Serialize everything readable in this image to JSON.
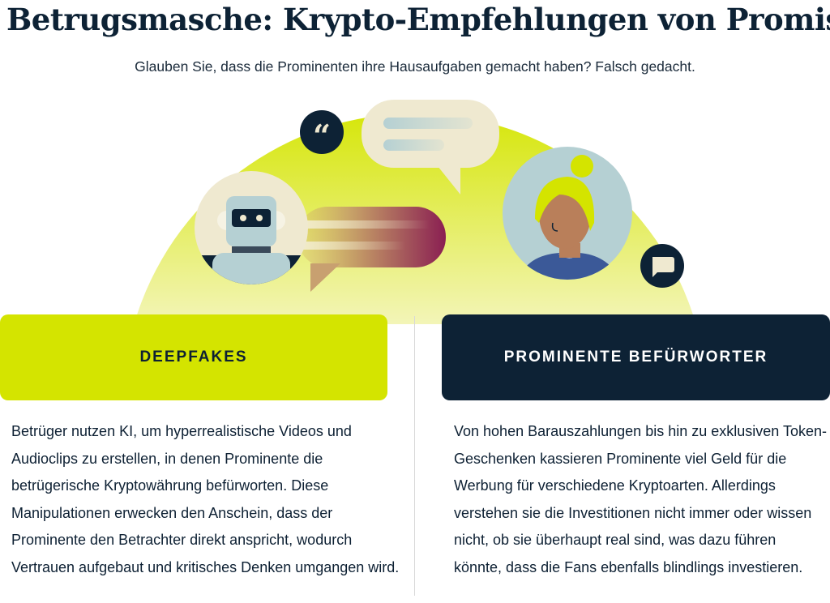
{
  "header": {
    "title": "Betrugsmasche: Krypto-Empfehlungen von Promis",
    "subtitle": "Glauben Sie, dass die Prominenten ihre Hausaufgaben gemacht haben? Falsch gedacht."
  },
  "colors": {
    "lime": "#d4e400",
    "navy": "#0d2235",
    "cream": "#efe9d0",
    "slate": "#b5d0d3",
    "berry": "#8a1f52"
  },
  "icons": [
    "quote-icon",
    "chat-bubble-icon",
    "robot-icon",
    "woman-icon"
  ],
  "cards": [
    {
      "label": "DEEPFAKES",
      "text": "Betrüger nutzen KI, um hyperrealistische Videos und Audioclips zu erstellen, in denen Prominente die betrügerische Kryptowährung befürworten. Diese Manipulationen erwecken den Anschein, dass der Prominente den Betrachter direkt anspricht, wodurch Vertrauen aufgebaut und kritisches Denken umgangen wird."
    },
    {
      "label": "PROMINENTE BEFÜRWORTER",
      "text": "Von hohen Barauszahlungen bis hin zu exklusiven Token-Geschenken kassieren Prominente viel Geld für die Werbung für verschiedene Kryptoarten. Allerdings verstehen sie die Investitionen nicht immer oder wissen nicht, ob sie überhaupt real sind, was dazu führen könnte, dass die Fans ebenfalls blindlings investieren."
    }
  ]
}
